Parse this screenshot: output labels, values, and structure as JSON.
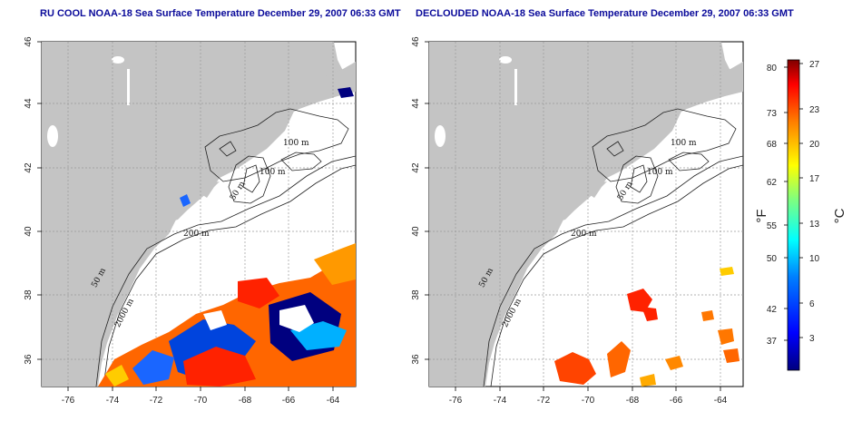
{
  "maps": [
    {
      "title": "RU COOL NOAA-18 Sea Surface Temperature December 29, 2007 06:33 GMT",
      "contour_labels": [
        "100 m",
        "100 m",
        "50 m",
        "200 m",
        "50 m",
        "2000 m"
      ]
    },
    {
      "title": "DECLOUDED NOAA-18 Sea Surface Temperature December 29, 2007 06:33 GMT",
      "contour_labels": [
        "100 m",
        "100 m",
        "50 m",
        "200 m",
        "50 m",
        "2000 m"
      ]
    }
  ],
  "axes": {
    "lon_ticks": [
      "-76",
      "-74",
      "-72",
      "-70",
      "-68",
      "-66",
      "-64"
    ],
    "lat_ticks": [
      "46",
      "44",
      "42",
      "40",
      "38",
      "36"
    ]
  },
  "colorbar": {
    "fahrenheit_ticks": [
      "80",
      "73",
      "68",
      "62",
      "55",
      "50",
      "42",
      "37"
    ],
    "celsius_ticks": [
      "27",
      "23",
      "20",
      "17",
      "13",
      "10",
      "6",
      "3"
    ],
    "fahrenheit_unit": "°F",
    "celsius_unit": "°C",
    "colors": [
      "#00007f",
      "#0000ff",
      "#007fff",
      "#00ffff",
      "#7fff7f",
      "#ffff00",
      "#ff7f00",
      "#ff0000",
      "#7f0000"
    ]
  },
  "colors": {
    "land": "#c4c4c4",
    "title": "#0a0a9a",
    "grid": "#9a9a9a"
  }
}
